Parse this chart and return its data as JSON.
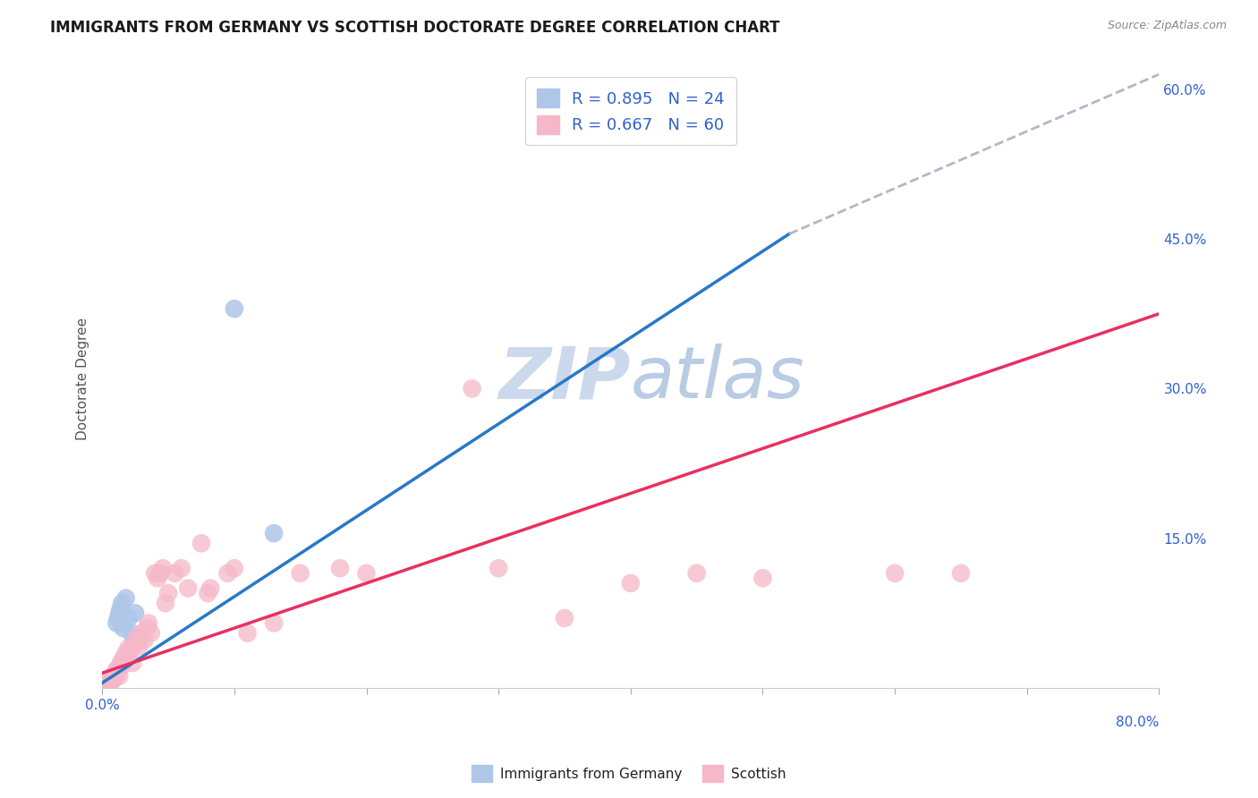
{
  "title": "IMMIGRANTS FROM GERMANY VS SCOTTISH DOCTORATE DEGREE CORRELATION CHART",
  "source": "Source: ZipAtlas.com",
  "ylabel": "Doctorate Degree",
  "xlim": [
    0.0,
    0.8
  ],
  "ylim": [
    0.0,
    0.62
  ],
  "legend_blue_r": "R = 0.895",
  "legend_blue_n": "N = 24",
  "legend_pink_r": "R = 0.667",
  "legend_pink_n": "N = 60",
  "legend_label_blue": "Immigrants from Germany",
  "legend_label_pink": "Scottish",
  "blue_color": "#aec6e8",
  "pink_color": "#f5b8c8",
  "blue_line_color": "#2878c8",
  "pink_line_color": "#e83060",
  "dash_line_color": "#b0b8c8",
  "watermark_color": "#ccd8ec",
  "blue_scatter_x": [
    0.002,
    0.003,
    0.004,
    0.005,
    0.005,
    0.006,
    0.007,
    0.008,
    0.009,
    0.01,
    0.011,
    0.012,
    0.013,
    0.014,
    0.015,
    0.016,
    0.018,
    0.02,
    0.022,
    0.024,
    0.025,
    0.028,
    0.1,
    0.13
  ],
  "blue_scatter_y": [
    0.003,
    0.005,
    0.004,
    0.006,
    0.008,
    0.007,
    0.01,
    0.008,
    0.01,
    0.012,
    0.065,
    0.07,
    0.075,
    0.08,
    0.085,
    0.06,
    0.09,
    0.07,
    0.055,
    0.045,
    0.075,
    0.05,
    0.38,
    0.155
  ],
  "pink_scatter_x": [
    0.001,
    0.002,
    0.003,
    0.004,
    0.005,
    0.005,
    0.006,
    0.007,
    0.008,
    0.008,
    0.009,
    0.01,
    0.01,
    0.011,
    0.012,
    0.013,
    0.014,
    0.015,
    0.016,
    0.017,
    0.018,
    0.019,
    0.02,
    0.022,
    0.023,
    0.025,
    0.026,
    0.028,
    0.03,
    0.032,
    0.034,
    0.035,
    0.037,
    0.04,
    0.042,
    0.044,
    0.046,
    0.048,
    0.05,
    0.055,
    0.06,
    0.065,
    0.075,
    0.08,
    0.082,
    0.095,
    0.1,
    0.11,
    0.13,
    0.15,
    0.18,
    0.2,
    0.28,
    0.3,
    0.35,
    0.4,
    0.45,
    0.5,
    0.6,
    0.65
  ],
  "pink_scatter_y": [
    0.003,
    0.005,
    0.004,
    0.007,
    0.005,
    0.008,
    0.006,
    0.01,
    0.008,
    0.012,
    0.01,
    0.015,
    0.012,
    0.018,
    0.02,
    0.012,
    0.025,
    0.022,
    0.03,
    0.028,
    0.035,
    0.032,
    0.04,
    0.038,
    0.025,
    0.045,
    0.05,
    0.042,
    0.055,
    0.048,
    0.06,
    0.065,
    0.055,
    0.115,
    0.11,
    0.115,
    0.12,
    0.085,
    0.095,
    0.115,
    0.12,
    0.1,
    0.145,
    0.095,
    0.1,
    0.115,
    0.12,
    0.055,
    0.065,
    0.115,
    0.12,
    0.115,
    0.3,
    0.12,
    0.07,
    0.105,
    0.115,
    0.11,
    0.115,
    0.115
  ],
  "blue_line_x": [
    0.0,
    0.52
  ],
  "blue_line_y": [
    0.005,
    0.455
  ],
  "pink_line_x": [
    0.0,
    0.8
  ],
  "pink_line_y": [
    0.015,
    0.375
  ],
  "dash_line_x": [
    0.52,
    0.8
  ],
  "dash_line_y": [
    0.455,
    0.615
  ],
  "bg_color": "#ffffff",
  "grid_color": "#e0e4ea",
  "title_fontsize": 12,
  "source_fontsize": 9,
  "tick_fontsize": 11,
  "legend_fontsize": 13
}
